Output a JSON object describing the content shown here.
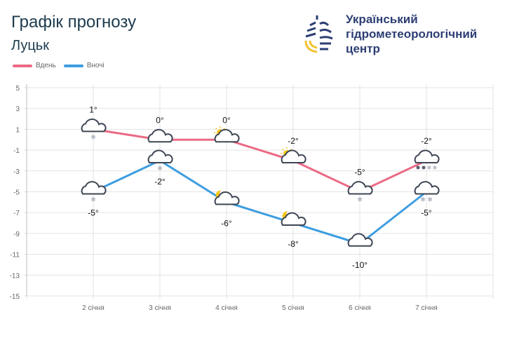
{
  "header": {
    "title": "Графік прогнозу",
    "city": "Луцьк"
  },
  "logo": {
    "org_line1": "Український",
    "org_line2": "гідрометеорологічний",
    "org_line3": "центр"
  },
  "chart_data": {
    "type": "line",
    "categories": [
      "2 січня",
      "3 січня",
      "4 січня",
      "5 січня",
      "6 січня",
      "7 січня"
    ],
    "series": [
      {
        "name": "Вдень",
        "color": "#ec6a85",
        "values": [
          1,
          0,
          0,
          -2,
          -5,
          -2
        ],
        "labels": [
          "1°",
          "0°",
          "0°",
          "-2°",
          "-5°",
          "-2°"
        ],
        "icons": [
          "cloud-snow",
          "cloud",
          "sun-cloud",
          "sun-cloud",
          "cloud-snow",
          "cloud-rain-snow"
        ]
      },
      {
        "name": "Вночі",
        "color": "#3d9de0",
        "values": [
          -5,
          -2,
          -6,
          -8,
          -10,
          -5
        ],
        "labels": [
          "-5°",
          "-2°",
          "-6°",
          "-8°",
          "-10°",
          "-5°"
        ],
        "icons": [
          "cloud-snow",
          "cloud-snow",
          "moon-cloud",
          "moon-cloud",
          "cloud",
          "cloud-snow"
        ]
      }
    ],
    "yticks": [
      "5",
      "3",
      "1",
      "-1",
      "-3",
      "-5",
      "-7",
      "-9",
      "-11",
      "-13",
      "-15"
    ],
    "ylim": [
      -15,
      5
    ],
    "grid": true,
    "legend": "top-left"
  }
}
